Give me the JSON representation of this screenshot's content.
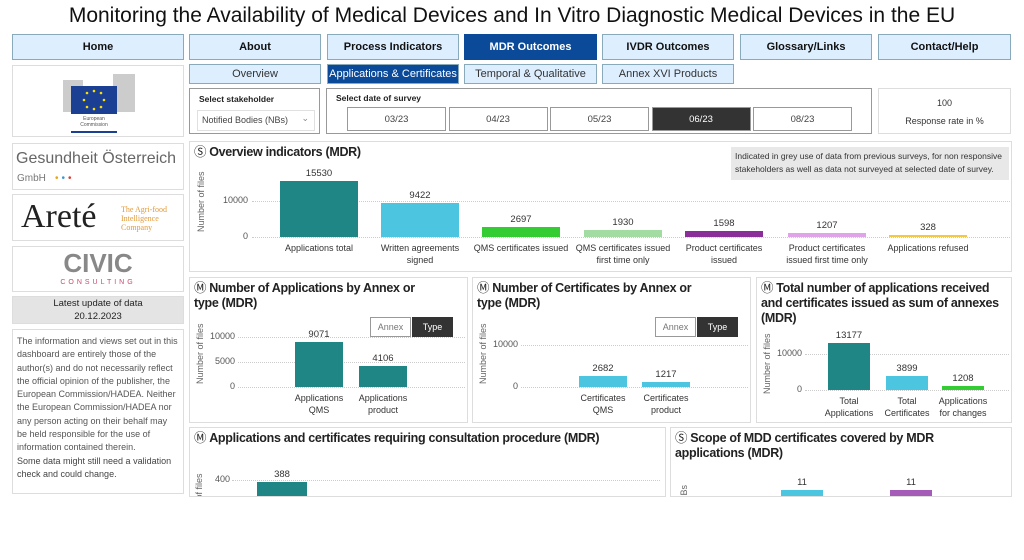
{
  "title": "Monitoring the Availability of Medical Devices and In Vitro Diagnostic Medical Devices in the EU",
  "nav": [
    "Home",
    "About",
    "Process Indicators",
    "MDR Outcomes",
    "IVDR Outcomes",
    "Glossary/Links",
    "Contact/Help"
  ],
  "nav_active": "MDR Outcomes",
  "subnav": [
    "Overview",
    "Applications & Certificates",
    "Temporal & Qualitative",
    "Annex XVI Products"
  ],
  "subnav_active": "Applications & Certificates",
  "logos": {
    "ec": "European Commission",
    "goeg": "Gesundheit Österreich",
    "goeg_sub": "GmbH",
    "arete": "Areté",
    "arete_sub": "The Agri-food Intelligence Company",
    "civic": "CIVIC",
    "civic_sub": "CONSULTING"
  },
  "update": {
    "label": "Latest update of data",
    "date": "20.12.2023"
  },
  "disclaimer": "The information and views set out in this dashboard are entirely those of the author(s) and do not necessarily reflect the official opinion of the publisher, the European Commission/HADEA. Neither the European Commission/HADEA nor any person acting on their behalf may be held responsible for the use of information contained therein.",
  "disclaimer2": "Some data might still need a validation check and could change.",
  "stakeholder": {
    "label": "Select stakeholder",
    "value": "Notified Bodies (NBs)"
  },
  "survey": {
    "label": "Select date of survey",
    "dates": [
      "03/23",
      "04/23",
      "05/23",
      "06/23",
      "08/23"
    ],
    "selected": "06/23"
  },
  "response": {
    "value": "100",
    "label": "Response rate in %"
  },
  "note": "Indicated in grey use of data from previous surveys, for non responsive stakeholders as well as data not surveyed at selected date of survey.",
  "toggle": {
    "annex": "Annex",
    "type": "Type",
    "selected": "Type"
  },
  "icons": {
    "s": "Ⓢ",
    "m": "Ⓜ"
  },
  "colors": {
    "accent": "#0b4a99",
    "nav_bg": "#ddeeff"
  },
  "chart_data": [
    {
      "id": "overview",
      "type": "bar",
      "title": "Overview indicators (MDR)",
      "icon": "s",
      "ylabel": "Number of files",
      "yticks": [
        0,
        10000
      ],
      "categories": [
        "Applications total",
        "Written agreements signed",
        "QMS certificates issued",
        "QMS certificates issued first time only",
        "Product certificates issued",
        "Product certificates issued first time only",
        "Applications refused"
      ],
      "values": [
        15530,
        9422,
        2697,
        1930,
        1598,
        1207,
        328
      ],
      "colors": [
        "#1f8585",
        "#4bc5e0",
        "#33cc33",
        "#a3dca3",
        "#8b2e9a",
        "#e0a3ea",
        "#f5c842"
      ]
    },
    {
      "id": "apps",
      "type": "bar",
      "title": "Number of Applications by Annex or type (MDR)",
      "icon": "m",
      "ylabel": "Number of files",
      "yticks": [
        0,
        5000,
        10000
      ],
      "categories": [
        "Applications QMS",
        "Applications product"
      ],
      "values": [
        9071,
        4106
      ],
      "colors": [
        "#1f8585",
        "#1f8585"
      ]
    },
    {
      "id": "certs",
      "type": "bar",
      "title": "Number of Certificates by Annex or type (MDR)",
      "icon": "m",
      "ylabel": "Number of files",
      "yticks": [
        0,
        10000
      ],
      "categories": [
        "Certificates QMS",
        "Certificates product"
      ],
      "values": [
        2682,
        1217
      ],
      "colors": [
        "#4bc5e0",
        "#4bc5e0"
      ]
    },
    {
      "id": "totals",
      "type": "bar",
      "title": "Total number of applications received and certificates issued as sum of annexes (MDR)",
      "icon": "m",
      "ylabel": "Number of files",
      "yticks": [
        0,
        10000
      ],
      "categories": [
        "Total Applications",
        "Total Certificates",
        "Applications for changes"
      ],
      "values": [
        13177,
        3899,
        1208
      ],
      "colors": [
        "#1f8585",
        "#4bc5e0",
        "#33cc33"
      ]
    },
    {
      "id": "consult",
      "type": "bar",
      "title": "Applications and certificates requiring consultation procedure (MDR)",
      "icon": "m",
      "ylabel": "Number of files",
      "yticks": [
        400
      ],
      "categories": [
        ""
      ],
      "values": [
        388
      ],
      "colors": [
        "#1f8585"
      ]
    },
    {
      "id": "scope",
      "type": "bar",
      "title": "Scope of MDD certificates covered by MDR applications (MDR)",
      "icon": "s",
      "ylabel": "NBs",
      "yticks": [],
      "categories": [
        "",
        ""
      ],
      "values": [
        11,
        11
      ],
      "colors": [
        "#4bc5e0",
        "#a55bb8"
      ]
    }
  ]
}
